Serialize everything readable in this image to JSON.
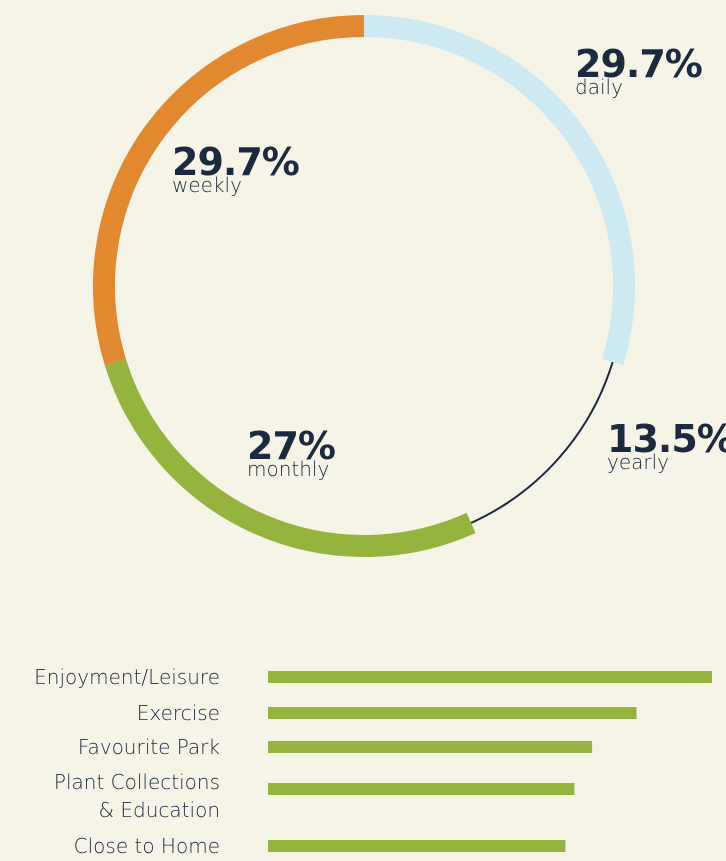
{
  "chart_data": [
    {
      "type": "donut",
      "categories": [
        "daily",
        "yearly",
        "monthly",
        "weekly"
      ],
      "values": [
        29.7,
        13.5,
        27,
        29.7
      ],
      "value_labels": [
        "29.7%",
        "13.5%",
        "27%",
        "29.7%"
      ],
      "colors": [
        "#cde9f2",
        "#1c2a3f",
        "#94b43e",
        "#e2882e"
      ]
    },
    {
      "type": "hbar",
      "categories": [
        "Enjoyment/Leisure",
        "Exercise",
        "Favourite Park",
        "Plant Collections\n& Education",
        "Close to Home"
      ],
      "values": [
        100,
        83,
        73,
        69,
        67
      ],
      "color": "#94b43e"
    }
  ]
}
